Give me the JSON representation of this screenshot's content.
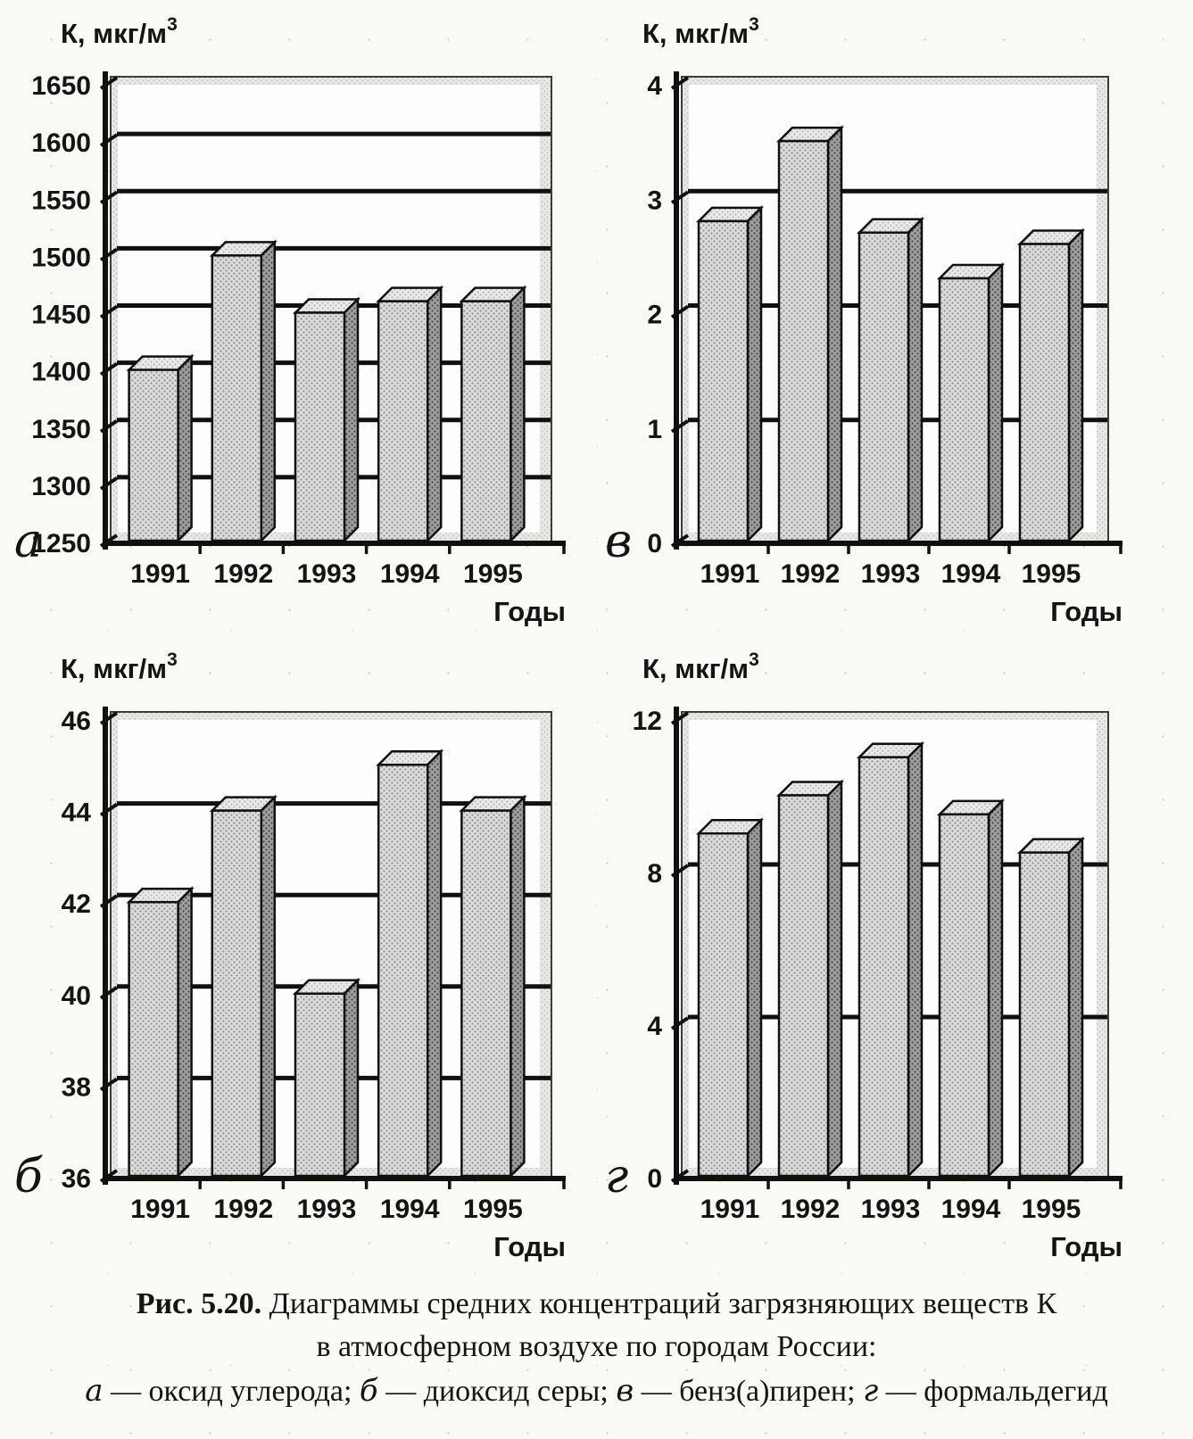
{
  "page": {
    "paper_color": "#faf9f5",
    "ink_color": "#141414",
    "bar_front_color": "#dcdcdc",
    "bar_side_color": "#9f9f9f",
    "bar_top_color": "#e9e9e9"
  },
  "chart_data": [
    {
      "type": "bar",
      "panel": "а",
      "position": "top-left",
      "ylabel_base": "К, мкг/м",
      "ylabel_sup": "3",
      "xlabel": "Годы",
      "categories": [
        "1991",
        "1992",
        "1993",
        "1994",
        "1995"
      ],
      "values": [
        1400,
        1500,
        1450,
        1460,
        1460
      ],
      "ylim": [
        1250,
        1650
      ],
      "yticks": [
        1250,
        1300,
        1350,
        1400,
        1450,
        1500,
        1550,
        1600,
        1650
      ],
      "grid": true,
      "legend": "none"
    },
    {
      "type": "bar",
      "panel": "в",
      "position": "top-right",
      "ylabel_base": "К, мкг/м",
      "ylabel_sup": "3",
      "xlabel": "Годы",
      "categories": [
        "1991",
        "1992",
        "1993",
        "1994",
        "1995"
      ],
      "values": [
        2.8,
        3.5,
        2.7,
        2.3,
        2.6
      ],
      "ylim": [
        0,
        4
      ],
      "yticks": [
        0,
        1,
        2,
        3,
        4
      ],
      "grid": true,
      "legend": "none"
    },
    {
      "type": "bar",
      "panel": "б",
      "position": "bottom-left",
      "ylabel_base": "К, мкг/м",
      "ylabel_sup": "3",
      "xlabel": "Годы",
      "categories": [
        "1991",
        "1992",
        "1993",
        "1994",
        "1995"
      ],
      "values": [
        42,
        44,
        40,
        45,
        44
      ],
      "ylim": [
        36,
        46
      ],
      "yticks": [
        36,
        38,
        40,
        42,
        44,
        46
      ],
      "grid": true,
      "legend": "none"
    },
    {
      "type": "bar",
      "panel": "г",
      "position": "bottom-right",
      "ylabel_base": "К, мкг/м",
      "ylabel_sup": "3",
      "xlabel": "Годы",
      "categories": [
        "1991",
        "1992",
        "1993",
        "1994",
        "1995"
      ],
      "values": [
        9,
        10,
        11,
        9.5,
        8.5
      ],
      "ylim": [
        0,
        12
      ],
      "yticks": [
        0,
        4,
        8,
        12
      ],
      "grid": true,
      "legend": "none"
    }
  ],
  "caption": {
    "figure_label": "Рис. 5.20.",
    "line1_rest": "Диаграммы средних концентраций загрязняющих веществ К",
    "line2": "в атмосферном воздухе по городам России:",
    "legend": [
      {
        "letter": "а",
        "text": "оксид углерода"
      },
      {
        "letter": "б",
        "text": "диоксид серы"
      },
      {
        "letter": "в",
        "text": "бенз(а)пирен"
      },
      {
        "letter": "г",
        "text": "формальдегид"
      }
    ],
    "separator": "; ",
    "dash": " — "
  }
}
